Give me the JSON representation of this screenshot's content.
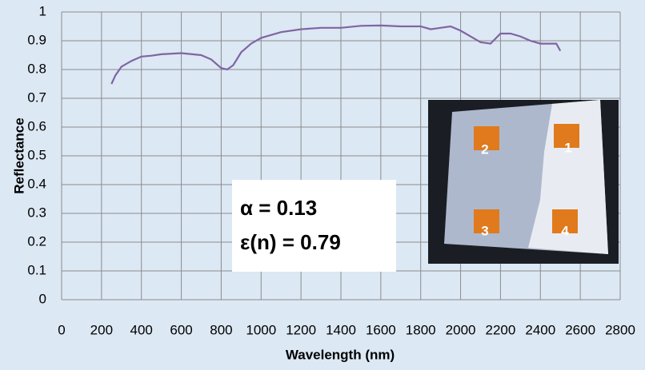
{
  "chart_data": {
    "type": "line",
    "x_label": "Wavelength (nm)",
    "y_label": "Reflectance",
    "annotations": [
      "α = 0.13",
      "ε(n) = 0.79"
    ],
    "inset_labels": [
      "1",
      "2",
      "3",
      "4"
    ],
    "x": [
      250,
      270,
      300,
      350,
      400,
      450,
      500,
      600,
      700,
      750,
      800,
      830,
      860,
      900,
      950,
      1000,
      1100,
      1200,
      1300,
      1400,
      1500,
      1600,
      1700,
      1800,
      1850,
      1900,
      1950,
      2000,
      2050,
      2100,
      2150,
      2200,
      2250,
      2300,
      2350,
      2400,
      2450,
      2480,
      2500
    ],
    "series": [
      {
        "color": "#8064a2",
        "values": [
          0.75,
          0.78,
          0.81,
          0.83,
          0.845,
          0.848,
          0.853,
          0.857,
          0.85,
          0.835,
          0.805,
          0.8,
          0.815,
          0.86,
          0.89,
          0.91,
          0.93,
          0.94,
          0.945,
          0.945,
          0.952,
          0.953,
          0.95,
          0.95,
          0.94,
          0.945,
          0.95,
          0.935,
          0.915,
          0.895,
          0.89,
          0.925,
          0.925,
          0.915,
          0.9,
          0.89,
          0.89,
          0.89,
          0.865
        ]
      }
    ],
    "xlim": [
      0,
      2800
    ],
    "xticks": [
      0,
      200,
      400,
      600,
      800,
      1000,
      1200,
      1400,
      1600,
      1800,
      2000,
      2200,
      2400,
      2600,
      2800
    ],
    "ylim": [
      0,
      1
    ],
    "yticks": [
      0,
      0.1,
      0.2,
      0.3,
      0.4,
      0.5,
      0.6,
      0.7,
      0.8,
      0.9,
      1
    ],
    "grid": true
  }
}
